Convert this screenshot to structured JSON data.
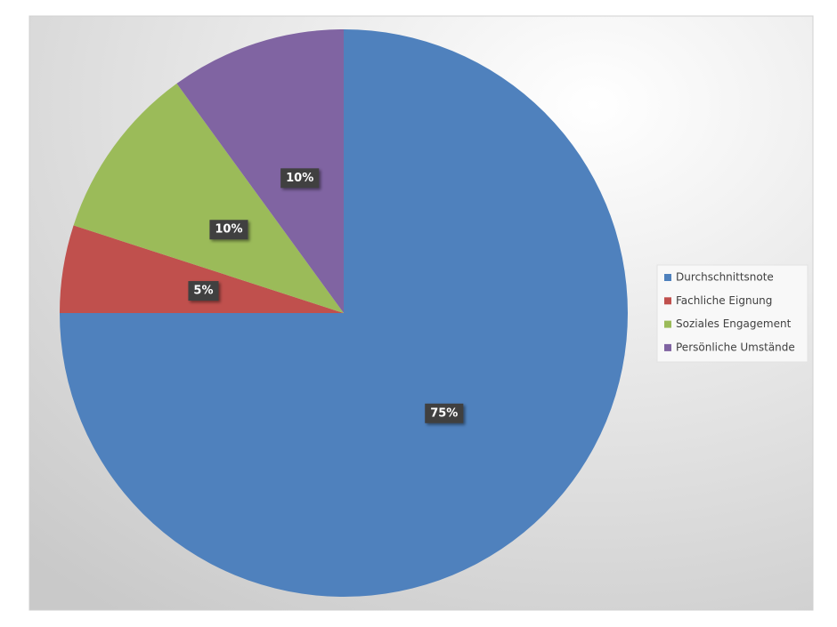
{
  "chart_data": {
    "type": "pie",
    "categories": [
      "Durchschnittsnote",
      "Fachliche Eignung",
      "Soziales Engagement",
      "Persönliche Umstände"
    ],
    "values": [
      75,
      5,
      10,
      10
    ],
    "value_labels": [
      "75%",
      "5%",
      "10%",
      "10%"
    ],
    "colors": [
      "#4f81bd",
      "#c0504d",
      "#9bbb59",
      "#8064a2"
    ],
    "legend": "right"
  }
}
